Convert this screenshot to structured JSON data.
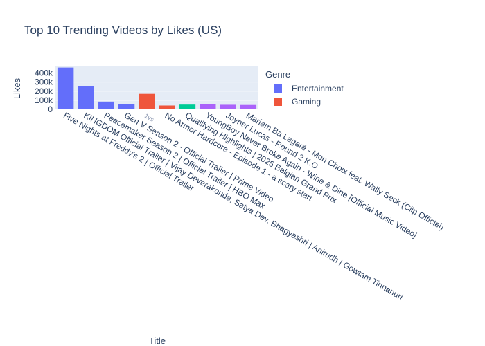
{
  "chart_data": {
    "type": "bar",
    "title": "Top 10 Trending Videos by Likes (US)",
    "xlabel": "Title",
    "ylabel": "Likes",
    "ylim": [
      0,
      480000
    ],
    "yticks": [
      0,
      100000,
      200000,
      300000,
      400000
    ],
    "ytick_labels": [
      "0",
      "100k",
      "200k",
      "300k",
      "400k"
    ],
    "grid": true,
    "legend_title": "Genre",
    "legend_position": "right",
    "categories": [
      "Five Nights at Freddy's 2 | Official Trailer",
      "KINGDOM Official Trailer | Vijay Deverakonda, Satya Dev, Bhagyashri | Anirudh | Gowtam Tinnanuri",
      "Peacemaker Season 2 | Official Trailer | HBO Max",
      "Gen V Season 2 - Official Trailer | Prime Video",
      "1vs",
      "No Armor Hardcore - Episode 1 - a scary start",
      "Qualifying Highlights | 2025 Belgian Grand Prix",
      "YoungBoy Never Broke Again - Wine & Dine [Official Music Video]",
      "Joyner Lucas - Round 2 K.O",
      "Mariam Ba Lagaré - Mon Choix feat. Wally Seck (Clip Officiel)"
    ],
    "values": [
      460000,
      255000,
      85000,
      60000,
      170000,
      42000,
      52000,
      55000,
      50000,
      48000
    ],
    "genres": [
      "Entertainment",
      "Entertainment",
      "Entertainment",
      "Entertainment",
      "Gaming",
      "Gaming",
      "",
      "",
      "",
      ""
    ],
    "series": [
      {
        "name": "Entertainment",
        "color": "#636efa"
      },
      {
        "name": "Gaming",
        "color": "#ef553b"
      }
    ],
    "bar_colors": [
      "#636efa",
      "#636efa",
      "#636efa",
      "#636efa",
      "#ef553b",
      "#ef553b",
      "#00cc96",
      "#ab63fa",
      "#ab63fa",
      "#ab63fa"
    ]
  }
}
